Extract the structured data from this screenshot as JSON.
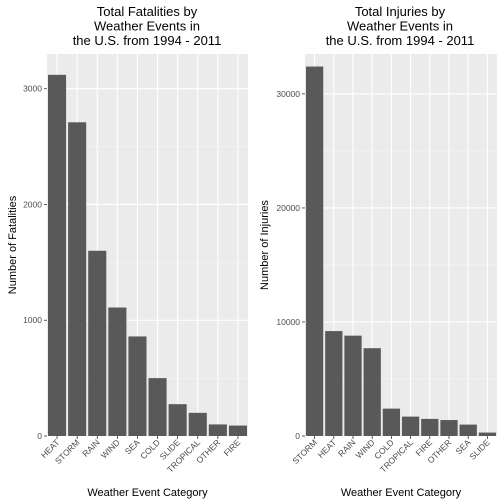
{
  "chart_data": [
    {
      "type": "bar",
      "title": [
        "Total Fatalities by",
        "Weather Events in",
        "the U.S. from 1994 - 2011"
      ],
      "xlabel": "Weather Event Category",
      "ylabel": "Number of Fatalities",
      "categories": [
        "HEAT",
        "STORM",
        "RAIN",
        "WIND",
        "SEA",
        "COLD",
        "SLIDE",
        "TROPICAL",
        "OTHER",
        "FIRE"
      ],
      "values": [
        3120,
        2710,
        1600,
        1110,
        860,
        500,
        275,
        200,
        100,
        90
      ],
      "ylim": [
        0,
        3300
      ],
      "yticks": [
        0,
        1000,
        2000,
        3000
      ],
      "grid": true,
      "bar_color": "#595959",
      "panel_color": "#ebebeb"
    },
    {
      "type": "bar",
      "title": [
        "Total Injuries by",
        "Weather Events in",
        "the U.S. from 1994 - 2011"
      ],
      "xlabel": "Weather Event Category",
      "ylabel": "Number of Injuries",
      "categories": [
        "STORM",
        "HEAT",
        "RAIN",
        "WIND",
        "COLD",
        "TROPICAL",
        "FIRE",
        "OTHER",
        "SEA",
        "SLIDE"
      ],
      "values": [
        32400,
        9200,
        8800,
        7700,
        2400,
        1700,
        1500,
        1400,
        1000,
        300
      ],
      "ylim": [
        0,
        33500
      ],
      "yticks": [
        0,
        10000,
        20000,
        30000
      ],
      "grid": true,
      "bar_color": "#595959",
      "panel_color": "#ebebeb"
    }
  ]
}
